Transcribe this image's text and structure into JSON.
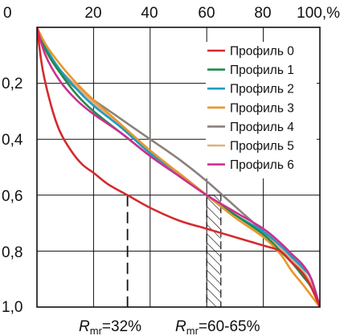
{
  "chart_data": {
    "type": "line",
    "x_tick_labels": [
      "0",
      "20",
      "40",
      "60",
      "80",
      "100,%"
    ],
    "y_tick_labels": [
      "0,2",
      "0,4",
      "0,6",
      "0,8",
      "1,0"
    ],
    "xlim": [
      0,
      100
    ],
    "ylim": [
      0,
      1.0
    ],
    "y_inverted": true,
    "x_axis_position": "top",
    "grid": true,
    "legend_position": "top-right",
    "series": [
      {
        "name": "Профиль 0",
        "color": "#d42a2f",
        "points": [
          [
            0,
            0
          ],
          [
            2,
            0.15
          ],
          [
            5,
            0.28
          ],
          [
            8,
            0.37
          ],
          [
            12,
            0.44
          ],
          [
            16,
            0.49
          ],
          [
            20,
            0.52
          ],
          [
            25,
            0.56
          ],
          [
            32,
            0.6
          ],
          [
            40,
            0.645
          ],
          [
            50,
            0.69
          ],
          [
            60,
            0.72
          ],
          [
            70,
            0.75
          ],
          [
            80,
            0.78
          ],
          [
            86,
            0.8
          ],
          [
            90,
            0.84
          ],
          [
            94,
            0.88
          ],
          [
            97,
            0.93
          ],
          [
            100,
            1.0
          ]
        ]
      },
      {
        "name": "Профиль 1",
        "color": "#1f8a4c",
        "points": [
          [
            0,
            0
          ],
          [
            3,
            0.08
          ],
          [
            8,
            0.16
          ],
          [
            14,
            0.24
          ],
          [
            20,
            0.3
          ],
          [
            30,
            0.38
          ],
          [
            40,
            0.46
          ],
          [
            50,
            0.53
          ],
          [
            60,
            0.6
          ],
          [
            70,
            0.67
          ],
          [
            80,
            0.74
          ],
          [
            86,
            0.8
          ],
          [
            90,
            0.84
          ],
          [
            94,
            0.89
          ],
          [
            97,
            0.93
          ],
          [
            100,
            1.0
          ]
        ]
      },
      {
        "name": "Профиль 2",
        "color": "#1f9cc4",
        "points": [
          [
            0,
            0
          ],
          [
            3,
            0.07
          ],
          [
            8,
            0.15
          ],
          [
            14,
            0.22
          ],
          [
            20,
            0.28
          ],
          [
            30,
            0.36
          ],
          [
            40,
            0.45
          ],
          [
            50,
            0.52
          ],
          [
            60,
            0.6
          ],
          [
            70,
            0.67
          ],
          [
            80,
            0.73
          ],
          [
            86,
            0.78
          ],
          [
            90,
            0.82
          ],
          [
            94,
            0.86
          ],
          [
            97,
            0.9
          ],
          [
            100,
            1.0
          ]
        ]
      },
      {
        "name": "Профиль 3",
        "color": "#e8962a",
        "points": [
          [
            0,
            0
          ],
          [
            3,
            0.06
          ],
          [
            8,
            0.13
          ],
          [
            14,
            0.2
          ],
          [
            20,
            0.26
          ],
          [
            30,
            0.35
          ],
          [
            40,
            0.44
          ],
          [
            50,
            0.52
          ],
          [
            60,
            0.6
          ],
          [
            70,
            0.68
          ],
          [
            80,
            0.75
          ],
          [
            86,
            0.81
          ],
          [
            90,
            0.87
          ],
          [
            94,
            0.92
          ],
          [
            97,
            0.96
          ],
          [
            100,
            1.0
          ]
        ]
      },
      {
        "name": "Профиль 4",
        "color": "#8a817c",
        "points": [
          [
            0,
            0
          ],
          [
            3,
            0.08
          ],
          [
            8,
            0.16
          ],
          [
            14,
            0.22
          ],
          [
            20,
            0.26
          ],
          [
            30,
            0.33
          ],
          [
            40,
            0.4
          ],
          [
            50,
            0.47
          ],
          [
            60,
            0.55
          ],
          [
            70,
            0.64
          ],
          [
            80,
            0.73
          ],
          [
            86,
            0.79
          ],
          [
            90,
            0.83
          ],
          [
            94,
            0.88
          ],
          [
            97,
            0.93
          ],
          [
            100,
            1.0
          ]
        ]
      },
      {
        "name": "Профиль 5",
        "color": "#e0b084",
        "points": [
          [
            0,
            0
          ],
          [
            3,
            0.07
          ],
          [
            8,
            0.15
          ],
          [
            14,
            0.21
          ],
          [
            20,
            0.27
          ],
          [
            30,
            0.36
          ],
          [
            40,
            0.45
          ],
          [
            50,
            0.53
          ],
          [
            60,
            0.6
          ],
          [
            70,
            0.67
          ],
          [
            80,
            0.74
          ],
          [
            86,
            0.79
          ],
          [
            90,
            0.83
          ],
          [
            94,
            0.87
          ],
          [
            97,
            0.92
          ],
          [
            100,
            1.0
          ]
        ]
      },
      {
        "name": "Профиль 6",
        "color": "#cc2f8f",
        "points": [
          [
            0,
            0
          ],
          [
            3,
            0.1
          ],
          [
            8,
            0.19
          ],
          [
            14,
            0.26
          ],
          [
            20,
            0.31
          ],
          [
            30,
            0.38
          ],
          [
            40,
            0.46
          ],
          [
            50,
            0.53
          ],
          [
            60,
            0.6
          ],
          [
            70,
            0.66
          ],
          [
            80,
            0.72
          ],
          [
            86,
            0.77
          ],
          [
            90,
            0.81
          ],
          [
            94,
            0.85
          ],
          [
            97,
            0.9
          ],
          [
            100,
            1.0
          ]
        ]
      }
    ],
    "markers": [
      {
        "type": "dashed-vline",
        "x": 32,
        "y_from": 0.6,
        "y_to": 1.0,
        "color": "#111111"
      },
      {
        "type": "hatched-band",
        "x_from": 60,
        "x_to": 65,
        "y_from": 0.6,
        "y_to": 1.0,
        "color": "#111111"
      }
    ],
    "annotations": [
      {
        "main": "R",
        "sub": "mr",
        "text": "=32%"
      },
      {
        "main": "R",
        "sub": "mr",
        "text": "=60-65%"
      }
    ]
  }
}
